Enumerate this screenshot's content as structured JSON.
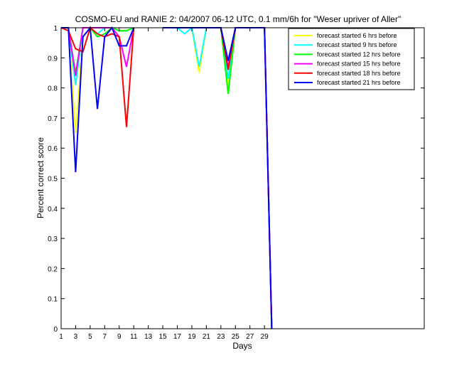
{
  "chart_data": {
    "type": "line",
    "title": "COSMO-EU and RANIE 2: 04/2007 06-12 UTC, 0.1 mm/6h for \"Weser upriver of Aller\"",
    "xlabel": "Days",
    "ylabel": "Percent correct score",
    "xlim": [
      1,
      51
    ],
    "ylim": [
      0,
      1
    ],
    "xticks": [
      1,
      3,
      5,
      7,
      9,
      11,
      13,
      15,
      17,
      19,
      21,
      23,
      25,
      27,
      29
    ],
    "yticks": [
      0,
      0.1,
      0.2,
      0.3,
      0.4,
      0.5,
      0.6,
      0.7,
      0.8,
      0.9,
      1
    ],
    "yticklabels": [
      "0",
      "0.1",
      "0.2",
      "0.3",
      "0.4",
      "0.5",
      "0.6",
      "0.7",
      "0.8",
      "0.9",
      "1"
    ],
    "grid": false,
    "legend_position": "top-right",
    "series": [
      {
        "name": "forecast started 6 hrs before",
        "color": "#ffff00",
        "segments": [
          {
            "x": [
              1,
              2,
              3,
              4,
              5,
              6,
              7,
              8,
              9,
              10,
              11
            ],
            "y": [
              1,
              1,
              0.65,
              0.97,
              1,
              1,
              1,
              1,
              0.99,
              0.99,
              1
            ]
          },
          {
            "x": [
              15,
              16,
              17,
              18,
              19,
              20,
              21,
              22,
              23,
              24,
              25,
              26,
              27,
              28,
              29,
              30
            ],
            "y": [
              1,
              1,
              1,
              1,
              1,
              0.85,
              1,
              1,
              1,
              0.81,
              1,
              1,
              1,
              1,
              1,
              0
            ]
          }
        ]
      },
      {
        "name": "forecast started 9 hrs before",
        "color": "#00ffff",
        "segments": [
          {
            "x": [
              1,
              2,
              3,
              4,
              5,
              6,
              7,
              8,
              9,
              10,
              11
            ],
            "y": [
              1,
              1,
              0.81,
              1,
              1,
              0.98,
              1,
              1,
              0.99,
              0.99,
              1
            ]
          },
          {
            "x": [
              15,
              16,
              17,
              18,
              19,
              20,
              21,
              22,
              23,
              24,
              25,
              26,
              27,
              28,
              29,
              30
            ],
            "y": [
              1,
              1,
              1,
              0.98,
              1,
              0.87,
              1,
              1,
              1,
              0.83,
              1,
              1,
              1,
              1,
              1,
              0
            ]
          }
        ]
      },
      {
        "name": "forecast started 12 hrs before",
        "color": "#00ff00",
        "segments": [
          {
            "x": [
              1,
              2,
              3,
              4,
              5,
              6,
              7,
              8,
              9,
              10,
              11
            ],
            "y": [
              1,
              1,
              0.85,
              1,
              1,
              0.97,
              0.98,
              1,
              0.99,
              0.99,
              1
            ]
          },
          {
            "x": [
              15,
              16,
              17,
              18,
              19,
              20,
              21,
              22,
              23,
              24,
              25,
              26,
              27,
              28,
              29,
              30
            ],
            "y": [
              1,
              1,
              1,
              1,
              1,
              1,
              1,
              1,
              1,
              0.78,
              1,
              1,
              1,
              1,
              1,
              0
            ]
          }
        ]
      },
      {
        "name": "forecast started 15 hrs before",
        "color": "#ff00ff",
        "segments": [
          {
            "x": [
              1,
              2,
              3,
              4,
              5,
              6,
              7,
              8,
              9,
              10,
              11
            ],
            "y": [
              1,
              1,
              0.84,
              1,
              1,
              1,
              1,
              1,
              0.97,
              0.87,
              1
            ]
          },
          {
            "x": [
              15,
              16,
              17,
              18,
              19,
              20,
              21,
              22,
              23,
              24,
              25,
              26,
              27,
              28,
              29,
              30
            ],
            "y": [
              1,
              1,
              1,
              1,
              1,
              1,
              1,
              1,
              1,
              0.87,
              1,
              1,
              1,
              1,
              1,
              0
            ]
          }
        ]
      },
      {
        "name": "forecast started 18 hrs before",
        "color": "#ff0000",
        "segments": [
          {
            "x": [
              1,
              2,
              3,
              4,
              5,
              6,
              7,
              8,
              9,
              10,
              11
            ],
            "y": [
              1,
              0.99,
              0.93,
              0.92,
              1,
              0.98,
              0.97,
              0.98,
              0.97,
              0.67,
              1
            ]
          },
          {
            "x": [
              15,
              16,
              17,
              18,
              19,
              20,
              21,
              22,
              23,
              24,
              25,
              26,
              27,
              28,
              29,
              30
            ],
            "y": [
              1,
              1,
              1,
              1,
              1,
              1,
              1,
              1,
              1,
              0.86,
              1,
              1,
              1,
              1,
              1,
              0
            ]
          }
        ]
      },
      {
        "name": "forecast started 21 hrs before",
        "color": "#0000ff",
        "segments": [
          {
            "x": [
              1,
              2,
              3,
              4,
              5,
              6,
              7,
              8,
              9,
              10,
              11
            ],
            "y": [
              1,
              1,
              0.52,
              0.97,
              1,
              0.73,
              0.97,
              1,
              0.94,
              0.94,
              1
            ]
          },
          {
            "x": [
              15,
              16,
              17,
              18,
              19,
              20,
              21,
              22,
              23,
              24,
              25,
              26,
              27,
              28,
              29,
              30
            ],
            "y": [
              1,
              1,
              1,
              1,
              1,
              1,
              1,
              1,
              1,
              0.89,
              1,
              1,
              1,
              1,
              1,
              0
            ]
          }
        ]
      }
    ]
  }
}
